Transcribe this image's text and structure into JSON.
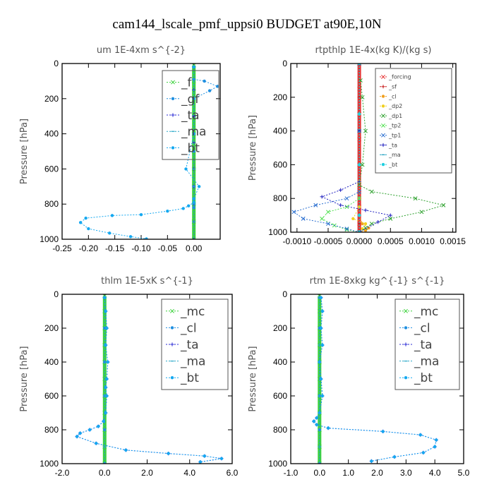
{
  "figure": {
    "title": "cam144_lscale_pmf_uppsi0  BUDGET at90E,10N"
  },
  "chart_data": [
    {
      "type": "line",
      "title": "um   1E-4xm  s^{-2}",
      "ylabel": "Pressure [hPa]",
      "xlabel": "",
      "xlim": [
        -0.25,
        0.05
      ],
      "ylim": [
        1000,
        0
      ],
      "xticks": [
        -0.25,
        -0.2,
        -0.15,
        -0.1,
        -0.05,
        0.0
      ],
      "xtick_labels": [
        "-0.25",
        "-0.20",
        "-0.15",
        "-0.10",
        "-0.05",
        "0.00"
      ],
      "yticks": [
        0,
        200,
        400,
        600,
        800,
        1000
      ],
      "legend_position": "top-right",
      "legend_font": 17,
      "legend": [
        "_f",
        "_gf",
        "_ta",
        "_ma",
        "_bt"
      ],
      "series": [
        {
          "name": "_f",
          "color": "#3cd23c",
          "marker": "x",
          "x": [
            0,
            0,
            0,
            0,
            0,
            0,
            0,
            0,
            0,
            0,
            0
          ],
          "y": [
            10,
            100,
            200,
            300,
            400,
            500,
            600,
            700,
            800,
            900,
            1000
          ]
        },
        {
          "name": "_gf",
          "color": "#1f8fe0",
          "marker": "*",
          "x": [
            0.0,
            0.02,
            0.045,
            0.03,
            0.0,
            0.0,
            0.0,
            0.0,
            0.0,
            0.0
          ],
          "y": [
            90,
            100,
            130,
            155,
            200,
            300,
            500,
            700,
            800,
            820
          ]
        },
        {
          "name": "_ta",
          "color": "#2b2bd6",
          "marker": "+",
          "x": [
            0.0,
            0.0,
            0.0,
            0.0,
            0.0,
            0.0,
            0.0,
            0.0,
            0.0
          ],
          "y": [
            20,
            150,
            300,
            450,
            600,
            700,
            800,
            900,
            1000
          ]
        },
        {
          "name": "_ma",
          "color": "#2aa8c8",
          "marker": "-",
          "x": [
            0.0,
            0.0,
            0.0,
            0.0,
            0.0,
            0.0,
            0.0,
            0.0
          ],
          "y": [
            20,
            200,
            400,
            600,
            700,
            800,
            900,
            1000
          ]
        },
        {
          "name": "_bt",
          "color": "#14a8f0",
          "marker": "*",
          "x": [
            0.0,
            0.0,
            0.0,
            -0.015,
            0.01,
            0.0,
            0.0,
            -0.01,
            -0.02,
            -0.05,
            -0.1,
            -0.155,
            -0.205,
            -0.215,
            -0.2,
            -0.16,
            -0.12,
            -0.09
          ],
          "y": [
            20,
            200,
            400,
            600,
            700,
            770,
            790,
            810,
            825,
            840,
            860,
            865,
            880,
            905,
            940,
            965,
            985,
            998
          ]
        }
      ]
    },
    {
      "type": "line",
      "title": "rtpthlp   1E-4x(kg K)/(kg s)",
      "ylabel": "Pressure [hPa]",
      "xlabel": "",
      "xlim": [
        -0.0011,
        0.00155
      ],
      "ylim": [
        1000,
        0
      ],
      "xticks": [
        -0.001,
        -0.0005,
        0.0,
        0.0005,
        0.001,
        0.0015
      ],
      "xtick_labels": [
        "-0.0010",
        "-0.0005",
        "0.0000",
        "0.0005",
        "0.0010",
        "0.0015"
      ],
      "yticks": [
        0,
        200,
        400,
        600,
        800,
        1000
      ],
      "legend_position": "top-right",
      "legend_font": 8,
      "legend": [
        "_forcing",
        "_sf",
        "_cl",
        "_dp2",
        "_dp1",
        "_tp2",
        "_tp1",
        "_ta",
        "_ma",
        "_bt"
      ],
      "series": [
        {
          "name": "_forcing",
          "color": "#e63232",
          "marker": "x",
          "x": [
            0,
            0,
            0,
            0,
            0,
            0,
            0,
            0,
            0
          ],
          "y": [
            0,
            150,
            300,
            450,
            600,
            750,
            850,
            950,
            1000
          ]
        },
        {
          "name": "_sf",
          "color": "#c81e1e",
          "marker": "+",
          "x": [
            0,
            0,
            0,
            0,
            0,
            0,
            0
          ],
          "y": [
            0,
            200,
            400,
            600,
            800,
            950,
            1000
          ]
        },
        {
          "name": "_cl",
          "color": "#f0a020",
          "marker": "*",
          "x": [
            0,
            0,
            0,
            0,
            0,
            5e-05,
            0.00015,
            0.0001,
            0.0
          ],
          "y": [
            0,
            300,
            600,
            800,
            900,
            950,
            975,
            990,
            1000
          ]
        },
        {
          "name": "_dp2",
          "color": "#f0d020",
          "marker": "*",
          "x": [
            0,
            0,
            0,
            0,
            -0.0001,
            0.0001,
            5e-05,
            0
          ],
          "y": [
            0,
            300,
            700,
            850,
            920,
            950,
            980,
            1000
          ]
        },
        {
          "name": "_dp1",
          "color": "#2ca02c",
          "marker": "x",
          "x": [
            2e-05,
            5e-05,
            0.0001,
            5e-05,
            0.0,
            0.0002,
            0.0009,
            0.00135,
            0.001,
            0.0005,
            0.0002,
            0.0001,
            0.0
          ],
          "y": [
            100,
            200,
            400,
            600,
            720,
            760,
            800,
            840,
            880,
            920,
            950,
            975,
            1000
          ]
        },
        {
          "name": "_tp2",
          "color": "#50e050",
          "marker": "x",
          "x": [
            0,
            0,
            0,
            -0.0002,
            -0.0005,
            -0.0006,
            -0.0004,
            -0.0002,
            0.0
          ],
          "y": [
            0,
            400,
            800,
            850,
            880,
            920,
            960,
            985,
            1000
          ]
        },
        {
          "name": "_tp1",
          "color": "#2a6fd0",
          "marker": "x",
          "x": [
            0,
            0,
            0,
            -0.0002,
            -0.0007,
            -0.00105,
            -0.0009,
            -0.0005,
            -0.0002,
            0.0
          ],
          "y": [
            0,
            400,
            760,
            800,
            840,
            880,
            920,
            950,
            980,
            1000
          ]
        },
        {
          "name": "_ta",
          "color": "#2020c0",
          "marker": "+",
          "x": [
            0,
            0,
            0,
            -0.0003,
            -0.0006,
            -0.0003,
            0.0001,
            0.0005,
            0.0003,
            0.0
          ],
          "y": [
            0,
            400,
            700,
            750,
            790,
            840,
            870,
            900,
            940,
            1000
          ]
        },
        {
          "name": "_ma",
          "color": "#20a0c0",
          "marker": "-",
          "x": [
            0,
            0,
            0,
            0,
            0
          ],
          "y": [
            0,
            300,
            600,
            900,
            1000
          ]
        },
        {
          "name": "_bt",
          "color": "#20d0e0",
          "marker": "*",
          "x": [
            0,
            0,
            0,
            0,
            0
          ],
          "y": [
            0,
            300,
            600,
            900,
            1000
          ]
        }
      ]
    },
    {
      "type": "line",
      "title": "thlm   1E-5xK  s^{-1}",
      "ylabel": "Pressure [hPa]",
      "xlabel": "",
      "xlim": [
        -2.0,
        6.0
      ],
      "ylim": [
        1000,
        0
      ],
      "xticks": [
        -2.0,
        0.0,
        2.0,
        4.0,
        6.0
      ],
      "xtick_labels": [
        "-2.0",
        "0.0",
        "2.0",
        "4.0",
        "6.0"
      ],
      "yticks": [
        0,
        200,
        400,
        600,
        800,
        1000
      ],
      "legend_position": "top-right",
      "legend_font": 17,
      "legend": [
        "_mc",
        "_cl",
        "_ta",
        "_ma",
        "_bt"
      ],
      "series": [
        {
          "name": "_mc",
          "color": "#3cd23c",
          "marker": "x",
          "x": [
            0,
            0,
            0,
            0,
            0,
            0,
            0,
            0,
            0,
            0,
            0
          ],
          "y": [
            10,
            100,
            200,
            300,
            400,
            500,
            600,
            700,
            800,
            900,
            1000
          ]
        },
        {
          "name": "_cl",
          "color": "#1f8fe0",
          "marker": "*",
          "x": [
            0,
            0,
            0,
            0,
            0,
            0
          ],
          "y": [
            20,
            200,
            400,
            600,
            800,
            1000
          ]
        },
        {
          "name": "_ta",
          "color": "#2b2bd6",
          "marker": "+",
          "x": [
            0,
            0.05,
            0.1,
            0.05,
            0.15,
            0.1,
            0.05,
            0.1,
            0.05,
            -0.05,
            -0.3,
            -0.7,
            -1.15,
            -1.3,
            -0.4,
            1.0,
            3.0,
            4.7,
            5.5,
            4.5
          ],
          "y": [
            20,
            100,
            200,
            300,
            400,
            500,
            550,
            600,
            700,
            750,
            780,
            800,
            820,
            840,
            880,
            920,
            940,
            955,
            970,
            990
          ]
        },
        {
          "name": "_ma",
          "color": "#2aa8c8",
          "marker": "-",
          "x": [
            0,
            0,
            0,
            0,
            0
          ],
          "y": [
            20,
            300,
            600,
            900,
            1000
          ]
        },
        {
          "name": "_bt",
          "color": "#14a8f0",
          "marker": "*",
          "x": [
            0,
            0.05,
            0.1,
            0.05,
            0.15,
            0.1,
            0.05,
            0.1,
            0.05,
            -0.05,
            -0.3,
            -0.7,
            -1.15,
            -1.3,
            -0.4,
            1.0,
            3.0,
            4.7,
            5.5,
            4.5
          ],
          "y": [
            20,
            100,
            200,
            300,
            400,
            500,
            550,
            600,
            700,
            750,
            780,
            800,
            820,
            840,
            880,
            920,
            940,
            955,
            970,
            990
          ]
        }
      ]
    },
    {
      "type": "line",
      "title": "rtm   1E-8xkg  kg^{-1}  s^{-1}",
      "ylabel": "Pressure [hPa]",
      "xlabel": "",
      "xlim": [
        -1.0,
        5.0
      ],
      "ylim": [
        1000,
        0
      ],
      "xticks": [
        -1.0,
        0.0,
        1.0,
        2.0,
        3.0,
        4.0,
        5.0
      ],
      "xtick_labels": [
        "-1.0",
        "0.0",
        "1.0",
        "2.0",
        "3.0",
        "4.0",
        "5.0"
      ],
      "yticks": [
        0,
        200,
        400,
        600,
        800,
        1000
      ],
      "legend_position": "top-right",
      "legend_font": 17,
      "legend": [
        "_mc",
        "_cl",
        "_ta",
        "_ma",
        "_bt"
      ],
      "series": [
        {
          "name": "_mc",
          "color": "#3cd23c",
          "marker": "x",
          "x": [
            0,
            0,
            0,
            0,
            0,
            0,
            0,
            0,
            0,
            0,
            0
          ],
          "y": [
            10,
            100,
            200,
            300,
            400,
            500,
            600,
            700,
            800,
            900,
            1000
          ]
        },
        {
          "name": "_cl",
          "color": "#1f8fe0",
          "marker": "*",
          "x": [
            0,
            0,
            0,
            0,
            0,
            0
          ],
          "y": [
            20,
            200,
            400,
            600,
            800,
            1000
          ]
        },
        {
          "name": "_ta",
          "color": "#2b2bd6",
          "marker": "+",
          "x": [
            0.05,
            0.1,
            0.05,
            0.1,
            0.0,
            0.05,
            0.1,
            0.0,
            -0.1,
            -0.2,
            -0.1,
            0.3,
            2.2,
            3.5,
            4.05,
            4.0,
            3.6,
            2.6,
            1.8
          ],
          "y": [
            20,
            100,
            200,
            300,
            400,
            500,
            600,
            700,
            730,
            750,
            770,
            790,
            810,
            830,
            860,
            900,
            935,
            960,
            985
          ]
        },
        {
          "name": "_ma",
          "color": "#2aa8c8",
          "marker": "-",
          "x": [
            0,
            0,
            0,
            0,
            0
          ],
          "y": [
            20,
            300,
            600,
            900,
            1000
          ]
        },
        {
          "name": "_bt",
          "color": "#14a8f0",
          "marker": "*",
          "x": [
            0.05,
            0.1,
            0.05,
            0.1,
            0.0,
            0.05,
            0.1,
            0.0,
            -0.1,
            -0.2,
            -0.1,
            0.3,
            2.2,
            3.5,
            4.05,
            4.0,
            3.6,
            2.6,
            1.8
          ],
          "y": [
            20,
            100,
            200,
            300,
            400,
            500,
            600,
            700,
            730,
            750,
            770,
            790,
            810,
            830,
            860,
            900,
            935,
            960,
            985
          ]
        }
      ]
    }
  ]
}
